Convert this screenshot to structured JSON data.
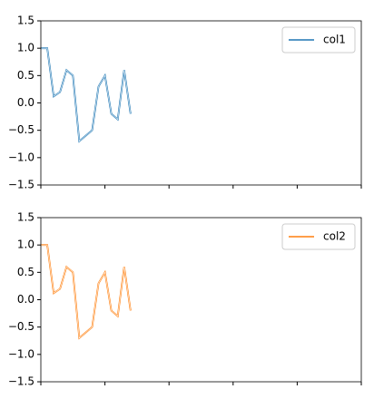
{
  "chart_data": [
    {
      "type": "line",
      "x": [
        0,
        1,
        2,
        3,
        4,
        5,
        6,
        7,
        8,
        9,
        10,
        11,
        12,
        13,
        14
      ],
      "series": [
        {
          "name": "col1",
          "color": "#1f77b4",
          "values": [
            1.0,
            1.0,
            0.12,
            0.2,
            0.6,
            0.5,
            -0.7,
            -0.6,
            -0.5,
            0.3,
            0.5,
            -0.2,
            -0.3,
            0.6,
            -0.2
          ]
        }
      ],
      "xlim": [
        0,
        50
      ],
      "xticks": [
        0,
        10,
        20,
        30,
        40,
        50
      ],
      "ylim": [
        -1.5,
        1.5
      ],
      "yticks": [
        {
          "value": -1.5,
          "label": "−1.5"
        },
        {
          "value": -1.0,
          "label": "−1.0"
        },
        {
          "value": -0.5,
          "label": "−0.5"
        },
        {
          "value": 0,
          "label": "0.0"
        },
        {
          "value": 0.5,
          "label": "0.5"
        },
        {
          "value": 1.0,
          "label": "1.0"
        },
        {
          "value": 1.5,
          "label": "1.5"
        }
      ],
      "legend": "upper right"
    },
    {
      "type": "line",
      "x": [
        0,
        1,
        2,
        3,
        4,
        5,
        6,
        7,
        8,
        9,
        10,
        11,
        12,
        13,
        14
      ],
      "series": [
        {
          "name": "col2",
          "color": "#ff7f0e",
          "values": [
            1.0,
            1.0,
            0.12,
            0.2,
            0.6,
            0.5,
            -0.7,
            -0.6,
            -0.5,
            0.3,
            0.5,
            -0.2,
            -0.3,
            0.6,
            -0.2
          ]
        }
      ],
      "xlim": [
        0,
        50
      ],
      "xticks": [
        0,
        10,
        20,
        30,
        40,
        50
      ],
      "ylim": [
        -1.5,
        1.5
      ],
      "yticks": [
        {
          "value": -1.5,
          "label": "−1.5"
        },
        {
          "value": -1.0,
          "label": "−1.0"
        },
        {
          "value": -0.5,
          "label": "−0.5"
        },
        {
          "value": 0,
          "label": "0.0"
        },
        {
          "value": 0.5,
          "label": "0.5"
        },
        {
          "value": 1.0,
          "label": "1.0"
        },
        {
          "value": 1.5,
          "label": "1.5"
        }
      ],
      "legend": "upper right"
    }
  ]
}
